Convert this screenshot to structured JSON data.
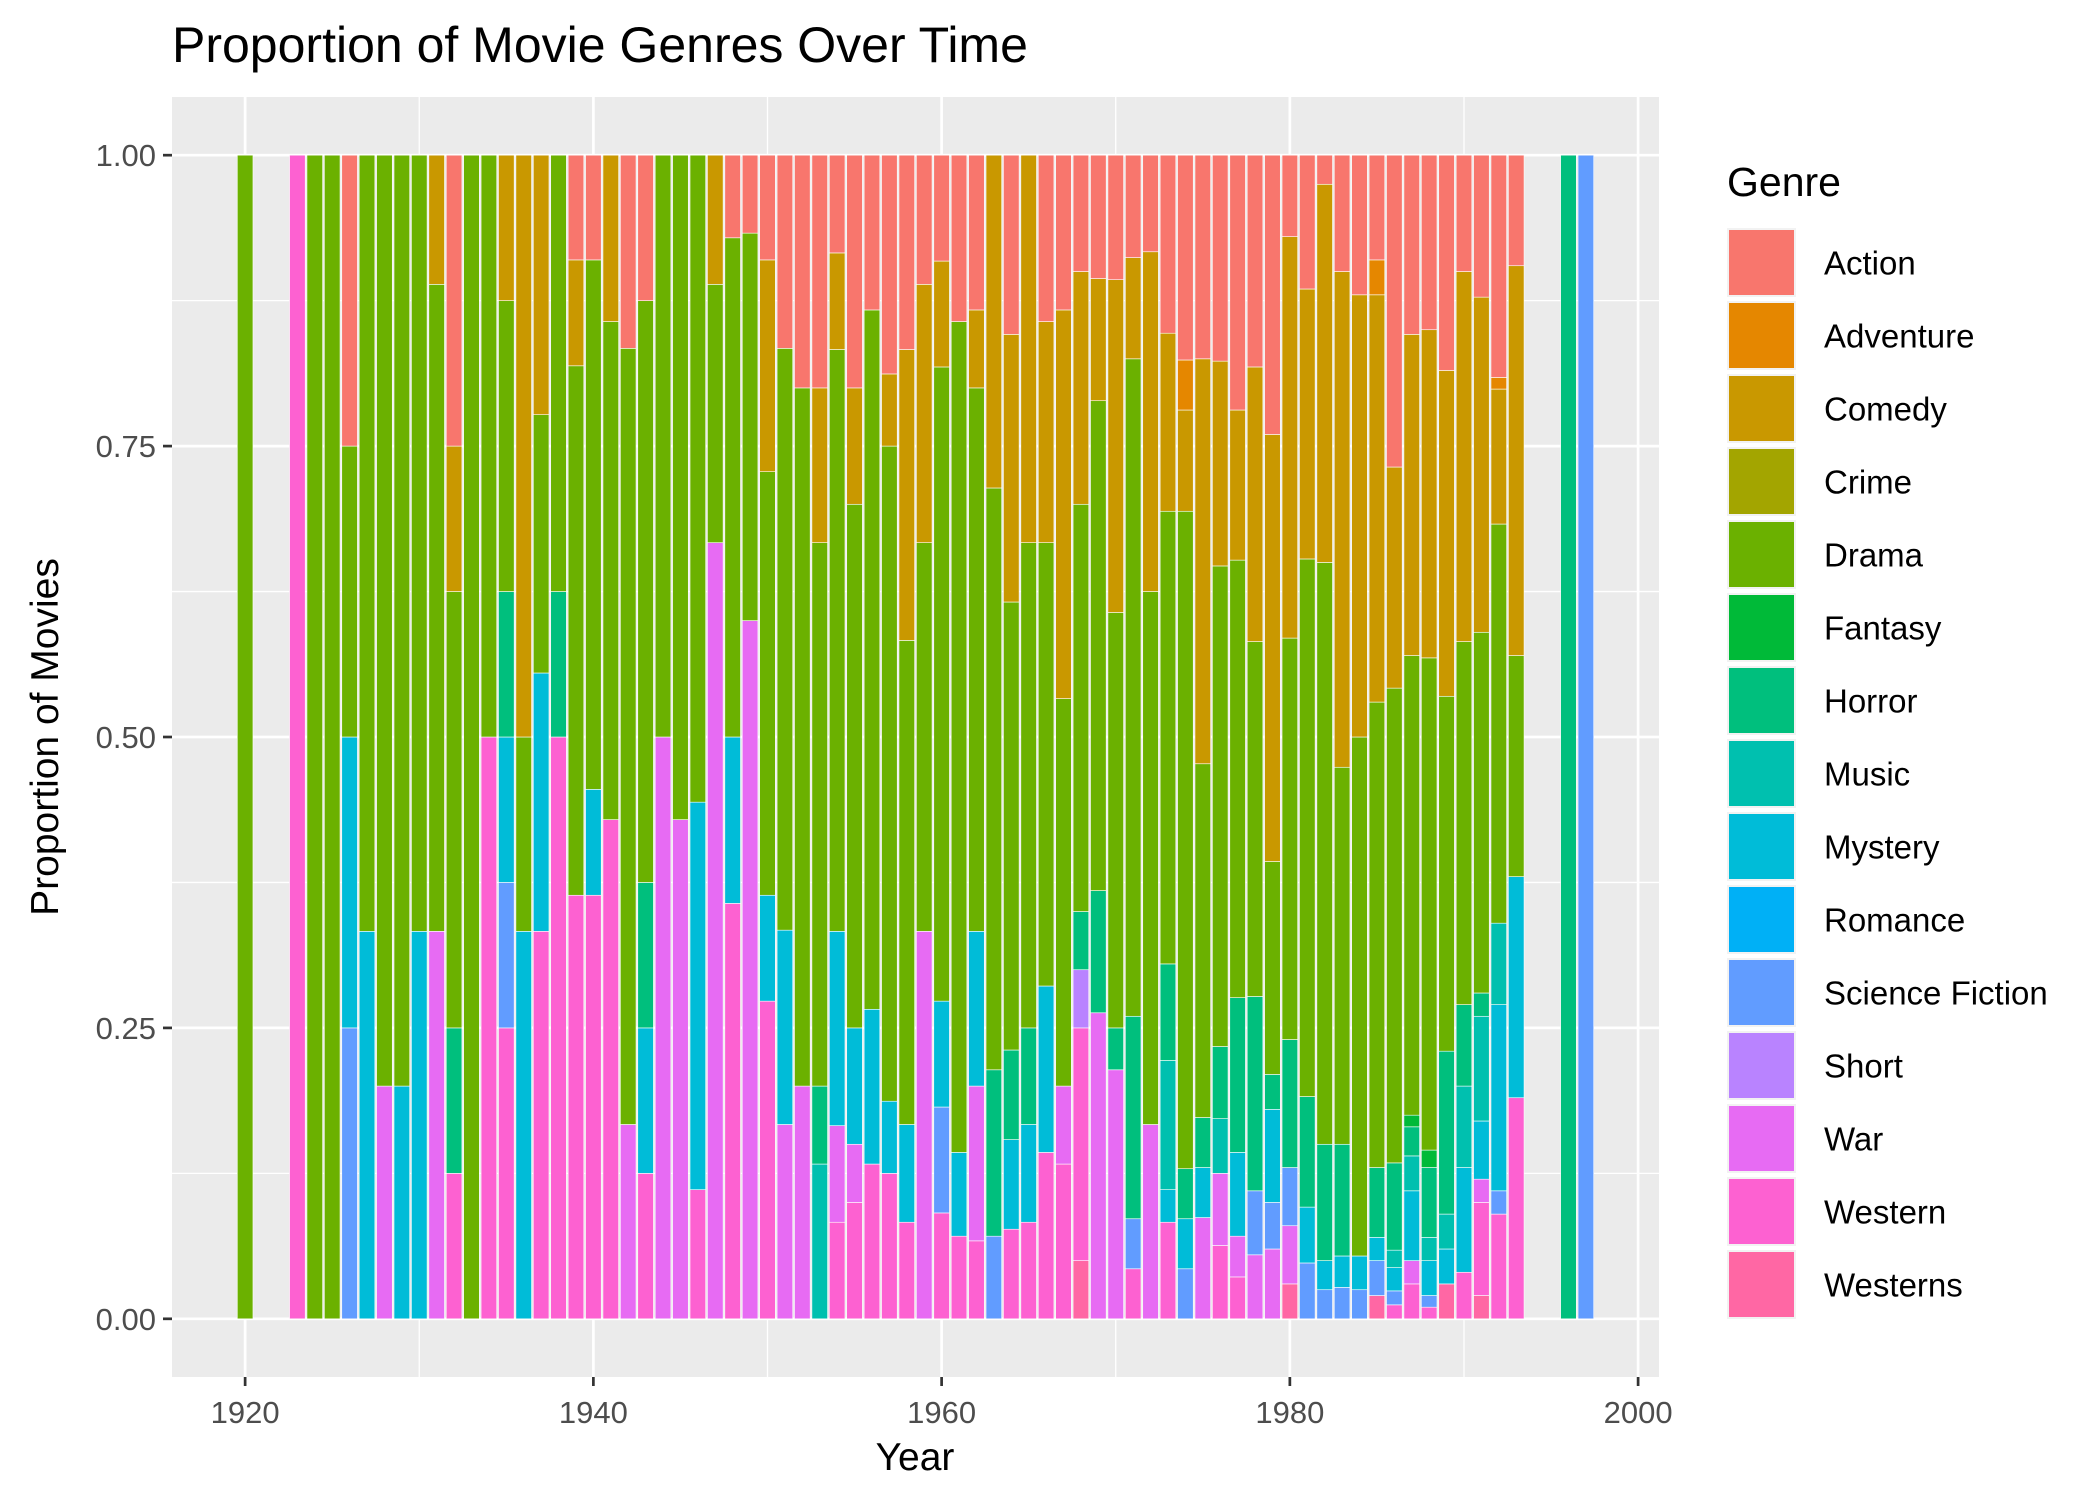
{
  "chart_data": {
    "type": "bar",
    "stacked": "proportion",
    "title": "Proportion of Movie Genres Over Time",
    "xlabel": "Year",
    "ylabel": "Proportion of Movies",
    "xlim": [
      1915.8,
      2001.2
    ],
    "ylim": [
      -0.05,
      1.05
    ],
    "x_ticks": [
      1920,
      1940,
      1960,
      1980,
      2000
    ],
    "y_ticks": [
      0.0,
      0.25,
      0.5,
      0.75,
      1.0
    ],
    "x_tick_labels": [
      "1920",
      "1940",
      "1960",
      "1980",
      "2000"
    ],
    "y_tick_labels": [
      "0.00",
      "0.25",
      "0.50",
      "0.75",
      "1.00"
    ],
    "grid": true,
    "panel_background": "#ebebeb",
    "legend": {
      "title": "Genre",
      "position": "right",
      "entries": [
        "Action",
        "Adventure",
        "Comedy",
        "Crime",
        "Drama",
        "Fantasy",
        "Horror",
        "Music",
        "Mystery",
        "Romance",
        "Science Fiction",
        "Short",
        "War",
        "Western",
        "Westerns"
      ]
    },
    "genre_colors": {
      "Action": "#F8766D",
      "Adventure": "#E58700",
      "Comedy": "#C99800",
      "Crime": "#A3A500",
      "Drama": "#6BB100",
      "Fantasy": "#00BA38",
      "Horror": "#00BF7D",
      "Music": "#00C0AF",
      "Mystery": "#00BCD8",
      "Romance": "#00B0F6",
      "Science Fiction": "#619CFF",
      "Short": "#B983FF",
      "War": "#E76BF3",
      "Western": "#FD61D1",
      "Westerns": "#FF67A4"
    },
    "stack_order_bottom_to_top": [
      "Westerns",
      "Western",
      "War",
      "Short",
      "Science Fiction",
      "Romance",
      "Mystery",
      "Music",
      "Horror",
      "Fantasy",
      "Drama",
      "Crime",
      "Comedy",
      "Adventure",
      "Action"
    ],
    "bars": [
      {
        "year": 1920,
        "Drama": 1.0
      },
      {
        "year": 1923,
        "Western": 1.0
      },
      {
        "year": 1924,
        "Drama": 1.0
      },
      {
        "year": 1925,
        "Drama": 1.0
      },
      {
        "year": 1926,
        "Science Fiction": 0.25,
        "Mystery": 0.25,
        "Drama": 0.25,
        "Action": 0.25
      },
      {
        "year": 1927,
        "Mystery": 0.333,
        "Drama": 0.667
      },
      {
        "year": 1928,
        "War": 0.2,
        "Drama": 0.8
      },
      {
        "year": 1929,
        "Mystery": 0.2,
        "Drama": 0.8
      },
      {
        "year": 1930,
        "Mystery": 0.333,
        "Drama": 0.667
      },
      {
        "year": 1931,
        "War": 0.333,
        "Drama": 0.556,
        "Comedy": 0.111
      },
      {
        "year": 1932,
        "Western": 0.125,
        "Horror": 0.125,
        "Drama": 0.375,
        "Comedy": 0.125,
        "Action": 0.25
      },
      {
        "year": 1933,
        "Drama": 1.0
      },
      {
        "year": 1934,
        "Western": 0.5,
        "Drama": 0.5
      },
      {
        "year": 1935,
        "Western": 0.25,
        "Science Fiction": 0.125,
        "Mystery": 0.125,
        "Horror": 0.125,
        "Drama": 0.25,
        "Comedy": 0.125
      },
      {
        "year": 1936,
        "Mystery": 0.333,
        "Drama": 0.167,
        "Comedy": 0.5
      },
      {
        "year": 1937,
        "Western": 0.333,
        "Mystery": 0.222,
        "Drama": 0.222,
        "Comedy": 0.223
      },
      {
        "year": 1938,
        "Western": 0.5,
        "Horror": 0.125,
        "Drama": 0.375
      },
      {
        "year": 1939,
        "Western": 0.364,
        "Drama": 0.455,
        "Comedy": 0.091,
        "Action": 0.09
      },
      {
        "year": 1940,
        "Western": 0.364,
        "Mystery": 0.091,
        "Drama": 0.455,
        "Action": 0.09
      },
      {
        "year": 1941,
        "Western": 0.429,
        "Drama": 0.428,
        "Comedy": 0.143
      },
      {
        "year": 1942,
        "War": 0.167,
        "Drama": 0.667,
        "Action": 0.166
      },
      {
        "year": 1943,
        "Western": 0.125,
        "Mystery": 0.125,
        "Horror": 0.125,
        "Drama": 0.5,
        "Action": 0.125
      },
      {
        "year": 1944,
        "War": 0.5,
        "Drama": 0.5
      },
      {
        "year": 1945,
        "War": 0.429,
        "Drama": 0.571
      },
      {
        "year": 1946,
        "Western": 0.111,
        "Mystery": 0.333,
        "Drama": 0.556
      },
      {
        "year": 1947,
        "War": 0.667,
        "Drama": 0.222,
        "Comedy": 0.111
      },
      {
        "year": 1948,
        "Western": 0.357,
        "Mystery": 0.143,
        "Drama": 0.429,
        "Action": 0.071
      },
      {
        "year": 1949,
        "War": 0.6,
        "Drama": 0.333,
        "Action": 0.067
      },
      {
        "year": 1950,
        "Western": 0.273,
        "Mystery": 0.091,
        "Drama": 0.364,
        "Comedy": 0.182,
        "Action": 0.09
      },
      {
        "year": 1951,
        "War": 0.167,
        "Mystery": 0.167,
        "Drama": 0.5,
        "Action": 0.166
      },
      {
        "year": 1952,
        "War": 0.2,
        "Drama": 0.6,
        "Action": 0.2
      },
      {
        "year": 1953,
        "Horror": 0.067,
        "Music": 0.133,
        "Drama": 0.467,
        "Comedy": 0.133,
        "Action": 0.2
      },
      {
        "year": 1954,
        "Western": 0.083,
        "War": 0.083,
        "Mystery": 0.167,
        "Drama": 0.5,
        "Comedy": 0.083,
        "Action": 0.084
      },
      {
        "year": 1955,
        "Western": 0.1,
        "War": 0.05,
        "Mystery": 0.1,
        "Drama": 0.45,
        "Comedy": 0.1,
        "Action": 0.2
      },
      {
        "year": 1956,
        "Western": 0.133,
        "Mystery": 0.133,
        "Drama": 0.601,
        "Action": 0.133
      },
      {
        "year": 1957,
        "Western": 0.125,
        "Mystery": 0.062,
        "Drama": 0.563,
        "Comedy": 0.062,
        "Action": 0.188
      },
      {
        "year": 1958,
        "Western": 0.083,
        "Mystery": 0.084,
        "Drama": 0.416,
        "Comedy": 0.25,
        "Action": 0.167
      },
      {
        "year": 1959,
        "War": 0.333,
        "Drama": 0.334,
        "Comedy": 0.222,
        "Action": 0.111
      },
      {
        "year": 1960,
        "Western": 0.091,
        "Science Fiction": 0.091,
        "Mystery": 0.091,
        "Drama": 0.545,
        "Comedy": 0.091,
        "Action": 0.091
      },
      {
        "year": 1961,
        "Western": 0.071,
        "Mystery": 0.072,
        "Drama": 0.714,
        "Action": 0.143
      },
      {
        "year": 1962,
        "Western": 0.067,
        "War": 0.133,
        "Mystery": 0.133,
        "Drama": 0.467,
        "Comedy": 0.067,
        "Action": 0.133
      },
      {
        "year": 1963,
        "Science Fiction": 0.071,
        "Horror": 0.143,
        "Drama": 0.5,
        "Comedy": 0.286
      },
      {
        "year": 1964,
        "Western": 0.077,
        "Mystery": 0.077,
        "Horror": 0.077,
        "Drama": 0.385,
        "Comedy": 0.23,
        "Action": 0.154
      },
      {
        "year": 1965,
        "Western": 0.083,
        "Mystery": 0.084,
        "Horror": 0.083,
        "Drama": 0.417,
        "Comedy": 0.333
      },
      {
        "year": 1966,
        "Western": 0.143,
        "Mystery": 0.143,
        "Drama": 0.381,
        "Comedy": 0.19,
        "Action": 0.143
      },
      {
        "year": 1967,
        "Western": 0.133,
        "War": 0.067,
        "Drama": 0.333,
        "Comedy": 0.334,
        "Action": 0.133
      },
      {
        "year": 1968,
        "Westerns": 0.05,
        "Western": 0.2,
        "Short": 0.05,
        "Horror": 0.05,
        "Drama": 0.35,
        "Comedy": 0.2,
        "Action": 0.1
      },
      {
        "year": 1969,
        "War": 0.263,
        "Horror": 0.105,
        "Drama": 0.421,
        "Comedy": 0.105,
        "Action": 0.106
      },
      {
        "year": 1970,
        "War": 0.214,
        "Horror": 0.036,
        "Drama": 0.357,
        "Comedy": 0.286,
        "Action": 0.107
      },
      {
        "year": 1971,
        "Western": 0.043,
        "Science Fiction": 0.043,
        "Horror": 0.174,
        "Drama": 0.565,
        "Comedy": 0.087,
        "Action": 0.088
      },
      {
        "year": 1972,
        "War": 0.167,
        "Drama": 0.458,
        "Comedy": 0.292,
        "Action": 0.083
      },
      {
        "year": 1973,
        "Western": 0.083,
        "Mystery": 0.028,
        "Horror": 0.083,
        "Music": 0.111,
        "Drama": 0.389,
        "Comedy": 0.153,
        "Action": 0.153
      },
      {
        "year": 1974,
        "Science Fiction": 0.043,
        "Mystery": 0.043,
        "Horror": 0.043,
        "Drama": 0.565,
        "Comedy": 0.087,
        "Adventure": 0.043,
        "Action": 0.176
      },
      {
        "year": 1975,
        "War": 0.087,
        "Mystery": 0.043,
        "Horror": 0.043,
        "Drama": 0.304,
        "Comedy": 0.348,
        "Action": 0.175
      },
      {
        "year": 1976,
        "Western": 0.063,
        "War": 0.062,
        "Horror": 0.062,
        "Music": 0.047,
        "Drama": 0.413,
        "Comedy": 0.176,
        "Action": 0.177
      },
      {
        "year": 1977,
        "Western": 0.036,
        "War": 0.035,
        "Mystery": 0.072,
        "Horror": 0.133,
        "Drama": 0.376,
        "Comedy": 0.129,
        "Action": 0.219
      },
      {
        "year": 1978,
        "War": 0.055,
        "Science Fiction": 0.055,
        "Horror": 0.167,
        "Drama": 0.305,
        "Comedy": 0.236,
        "Action": 0.182
      },
      {
        "year": 1979,
        "War": 0.06,
        "Science Fiction": 0.04,
        "Mystery": 0.08,
        "Horror": 0.03,
        "Drama": 0.183,
        "Comedy": 0.367,
        "Action": 0.24
      },
      {
        "year": 1980,
        "Westerns": 0.03,
        "War": 0.05,
        "Science Fiction": 0.05,
        "Horror": 0.11,
        "Drama": 0.345,
        "Comedy": 0.345,
        "Action": 0.07
      },
      {
        "year": 1981,
        "Science Fiction": 0.048,
        "Mystery": 0.048,
        "Horror": 0.095,
        "Drama": 0.462,
        "Comedy": 0.232,
        "Action": 0.115
      },
      {
        "year": 1982,
        "Science Fiction": 0.025,
        "Mystery": 0.025,
        "Horror": 0.1,
        "Drama": 0.5,
        "Comedy": 0.325,
        "Action": 0.025
      },
      {
        "year": 1983,
        "Science Fiction": 0.027,
        "Mystery": 0.027,
        "Horror": 0.096,
        "Drama": 0.324,
        "Comedy": 0.426,
        "Action": 0.1
      },
      {
        "year": 1984,
        "Science Fiction": 0.025,
        "Mystery": 0.029,
        "Drama": 0.446,
        "Comedy": 0.38,
        "Action": 0.12
      },
      {
        "year": 1985,
        "Westerns": 0.02,
        "Science Fiction": 0.03,
        "Mystery": 0.02,
        "Horror": 0.06,
        "Drama": 0.4,
        "Comedy": 0.35,
        "Adventure": 0.03,
        "Action": 0.09
      },
      {
        "year": 1986,
        "Western": 0.012,
        "Science Fiction": 0.012,
        "Mystery": 0.02,
        "Music": 0.015,
        "Horror": 0.075,
        "Drama": 0.408,
        "Comedy": 0.19,
        "Action": 0.268
      },
      {
        "year": 1987,
        "Western": 0.03,
        "War": 0.02,
        "Mystery": 0.06,
        "Music": 0.03,
        "Horror": 0.025,
        "Fantasy": 0.01,
        "Drama": 0.395,
        "Comedy": 0.276,
        "Action": 0.154
      },
      {
        "year": 1988,
        "Western": 0.01,
        "Science Fiction": 0.01,
        "Mystery": 0.03,
        "Music": 0.02,
        "Horror": 0.06,
        "Fantasy": 0.015,
        "Drama": 0.423,
        "Comedy": 0.282,
        "Action": 0.15
      },
      {
        "year": 1989,
        "Westerns": 0.03,
        "Mystery": 0.03,
        "Music": 0.03,
        "Horror": 0.14,
        "Drama": 0.305,
        "Comedy": 0.28,
        "Action": 0.185
      },
      {
        "year": 1990,
        "Western": 0.04,
        "Mystery": 0.09,
        "Music": 0.07,
        "Horror": 0.07,
        "Drama": 0.312,
        "Comedy": 0.318,
        "Action": 0.1
      },
      {
        "year": 1991,
        "Westerns": 0.02,
        "Western": 0.08,
        "War": 0.02,
        "Mystery": 0.05,
        "Music": 0.09,
        "Horror": 0.02,
        "Drama": 0.31,
        "Comedy": 0.288,
        "Action": 0.122
      },
      {
        "year": 1992,
        "Western": 0.09,
        "Science Fiction": 0.02,
        "Mystery": 0.16,
        "Music": 0.07,
        "Drama": 0.343,
        "Comedy": 0.116,
        "Adventure": 0.01,
        "Action": 0.191
      },
      {
        "year": 1993,
        "Western": 0.19,
        "Mystery": 0.19,
        "Drama": 0.19,
        "Comedy": 0.335,
        "Action": 0.095
      },
      {
        "year": 1996,
        "Horror": 1.0
      },
      {
        "year": 1997,
        "Science Fiction": 1.0
      }
    ]
  }
}
